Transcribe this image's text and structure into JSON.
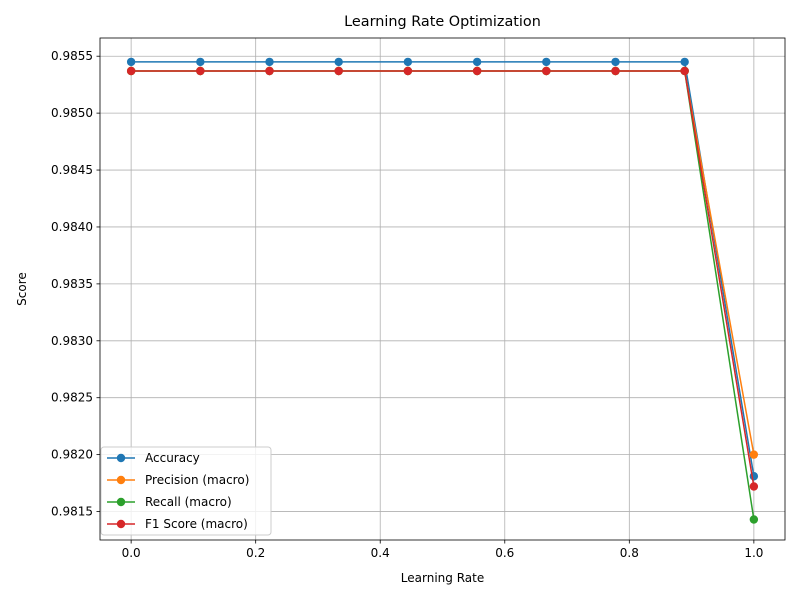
{
  "chart_data": {
    "type": "line",
    "title": "Learning Rate Optimization",
    "xlabel": "Learning Rate",
    "ylabel": "Score",
    "x": [
      0.0,
      0.1111,
      0.2222,
      0.3333,
      0.4444,
      0.5556,
      0.6667,
      0.7778,
      0.8889,
      1.0
    ],
    "xlim": [
      -0.05,
      1.05
    ],
    "ylim": [
      0.98125,
      0.98566
    ],
    "x_ticks": [
      0.0,
      0.2,
      0.4,
      0.6,
      0.8,
      1.0
    ],
    "x_tick_labels": [
      "0.0",
      "0.2",
      "0.4",
      "0.6",
      "0.8",
      "1.0"
    ],
    "y_ticks": [
      0.9815,
      0.982,
      0.9825,
      0.983,
      0.9835,
      0.984,
      0.9845,
      0.985,
      0.9855
    ],
    "y_tick_labels": [
      "0.9815",
      "0.9820",
      "0.9825",
      "0.9830",
      "0.9835",
      "0.9840",
      "0.9845",
      "0.9850",
      "0.9855"
    ],
    "grid": true,
    "legend_position": "lower-left",
    "series": [
      {
        "name": "Accuracy",
        "color": "#1f77b4",
        "values": [
          0.98545,
          0.98545,
          0.98545,
          0.98545,
          0.98545,
          0.98545,
          0.98545,
          0.98545,
          0.98545,
          0.98181
        ]
      },
      {
        "name": "Precision (macro)",
        "color": "#ff7f0e",
        "values": [
          0.98537,
          0.98537,
          0.98537,
          0.98537,
          0.98537,
          0.98537,
          0.98537,
          0.98537,
          0.98537,
          0.982
        ]
      },
      {
        "name": "Recall (macro)",
        "color": "#2ca02c",
        "values": [
          0.98537,
          0.98537,
          0.98537,
          0.98537,
          0.98537,
          0.98537,
          0.98537,
          0.98537,
          0.98537,
          0.98143
        ]
      },
      {
        "name": "F1 Score (macro)",
        "color": "#d62728",
        "values": [
          0.98537,
          0.98537,
          0.98537,
          0.98537,
          0.98537,
          0.98537,
          0.98537,
          0.98537,
          0.98537,
          0.98172
        ]
      }
    ]
  }
}
